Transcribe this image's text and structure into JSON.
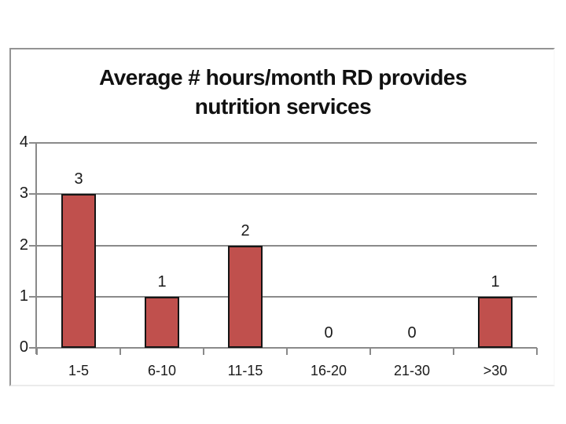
{
  "chart": {
    "title": "Average # hours/month RD provides nutrition services",
    "title_lines": [
      "Average # hours/month RD provides",
      "nutrition services"
    ]
  },
  "chart_data": {
    "type": "bar",
    "title": "Average # hours/month RD provides nutrition services",
    "categories": [
      "1-5",
      "6-10",
      "11-15",
      "16-20",
      "21-30",
      ">30"
    ],
    "values": [
      3,
      1,
      2,
      0,
      0,
      1
    ],
    "data_labels": [
      "3",
      "1",
      "2",
      "0",
      "0",
      "1"
    ],
    "xlabel": "",
    "ylabel": "",
    "yticks": [
      "0",
      "1",
      "2",
      "3",
      "4"
    ],
    "ylim": [
      0,
      4
    ],
    "grid": true,
    "legend": false,
    "colors": {
      "bar_fill": "#C0504D",
      "bar_border": "#151515",
      "axis": "#8A8A8A",
      "text": "#1A1A1A"
    }
  }
}
